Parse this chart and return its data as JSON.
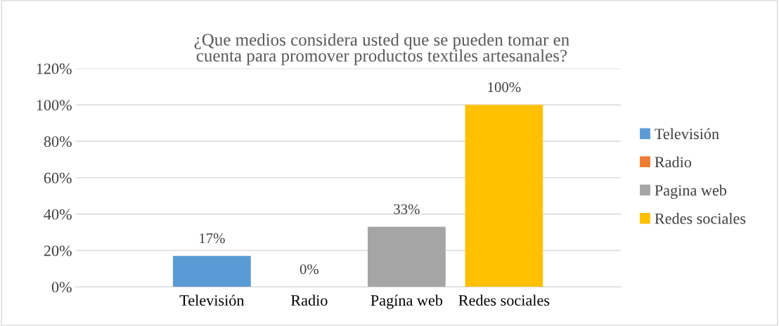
{
  "chart_data": {
    "type": "bar",
    "title": "¿Que medios considera usted que se pueden tomar en cuenta para promover productos textiles artesanales?",
    "categories": [
      "Televisión",
      "Radio",
      "Pagína web",
      "Redes sociales"
    ],
    "series": [
      {
        "name": "Televisión",
        "color": "#5b9bd5",
        "values": [
          17,
          null,
          null,
          null
        ],
        "value_labels": [
          "17%",
          null,
          null,
          null
        ]
      },
      {
        "name": "Radio",
        "color": "#ed7d31",
        "values": [
          null,
          0,
          null,
          null
        ],
        "value_labels": [
          null,
          "0%",
          null,
          null
        ]
      },
      {
        "name": "Pagina web",
        "color": "#a5a5a5",
        "values": [
          null,
          null,
          33,
          null
        ],
        "value_labels": [
          null,
          null,
          "33%",
          null
        ]
      },
      {
        "name": "Redes sociales",
        "color": "#ffc000",
        "values": [
          null,
          null,
          null,
          100
        ],
        "value_labels": [
          null,
          null,
          null,
          "100%"
        ]
      }
    ],
    "stacked": true,
    "ylim": [
      0,
      120
    ],
    "yticks": [
      {
        "value": 0,
        "label": "0%"
      },
      {
        "value": 20,
        "label": "20%"
      },
      {
        "value": 40,
        "label": "40%"
      },
      {
        "value": 60,
        "label": "60%"
      },
      {
        "value": 80,
        "label": "80%"
      },
      {
        "value": 100,
        "label": "100%"
      },
      {
        "value": 120,
        "label": "120%"
      }
    ],
    "grid": "y",
    "legend": "right"
  }
}
